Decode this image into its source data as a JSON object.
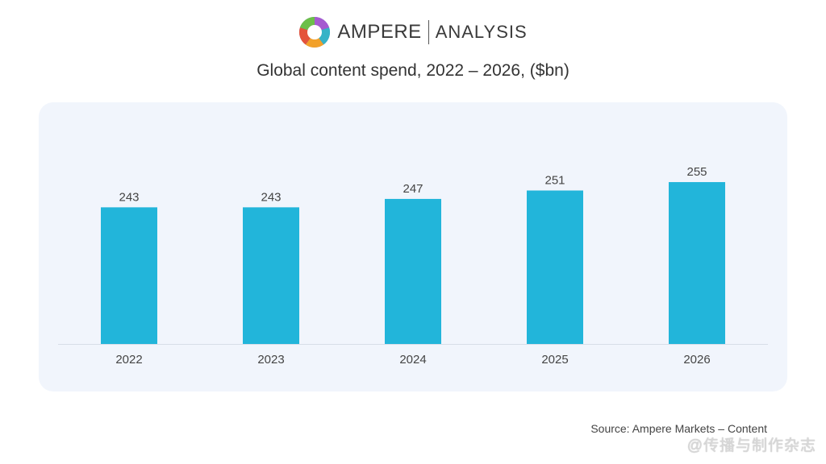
{
  "brand": {
    "name_a": "AMPERE",
    "name_b": "ANALYSIS",
    "colors": [
      "#5b6bd6",
      "#36b3c7",
      "#f2a12a",
      "#e4533b",
      "#6cbf4a",
      "#a55bd0"
    ]
  },
  "source": "Source: Ampere Markets – Content",
  "watermark": "@传播与制作杂志",
  "chart_data": {
    "type": "bar",
    "title": "Global content spend, 2022 – 2026, ($bn)",
    "categories": [
      "2022",
      "2023",
      "2024",
      "2025",
      "2026"
    ],
    "values": [
      243,
      243,
      247,
      251,
      255
    ],
    "xlabel": "",
    "ylabel": "",
    "ylim": [
      0,
      260
    ],
    "grid": false,
    "legend": "none",
    "bar_color": "#22b5da"
  }
}
